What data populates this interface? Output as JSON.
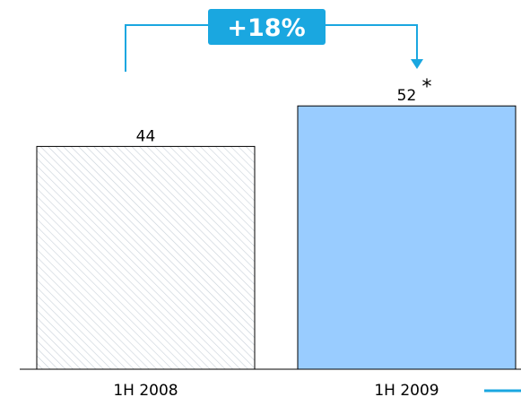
{
  "chart_data": {
    "type": "bar",
    "categories": [
      "1H 2008",
      "1H 2009"
    ],
    "values": [
      44,
      52
    ],
    "value_labels": [
      "44",
      "52"
    ],
    "value_notes": [
      "",
      "*"
    ],
    "ylim": [
      0,
      60
    ],
    "grid": false,
    "growth_label": "+18%",
    "bar_styles": [
      "hatched",
      "solid"
    ]
  },
  "colors": {
    "accent": "#1aa7e0",
    "bar_fill": "#99ccff",
    "hatch": "#c8d0d8",
    "border": "#000000"
  }
}
